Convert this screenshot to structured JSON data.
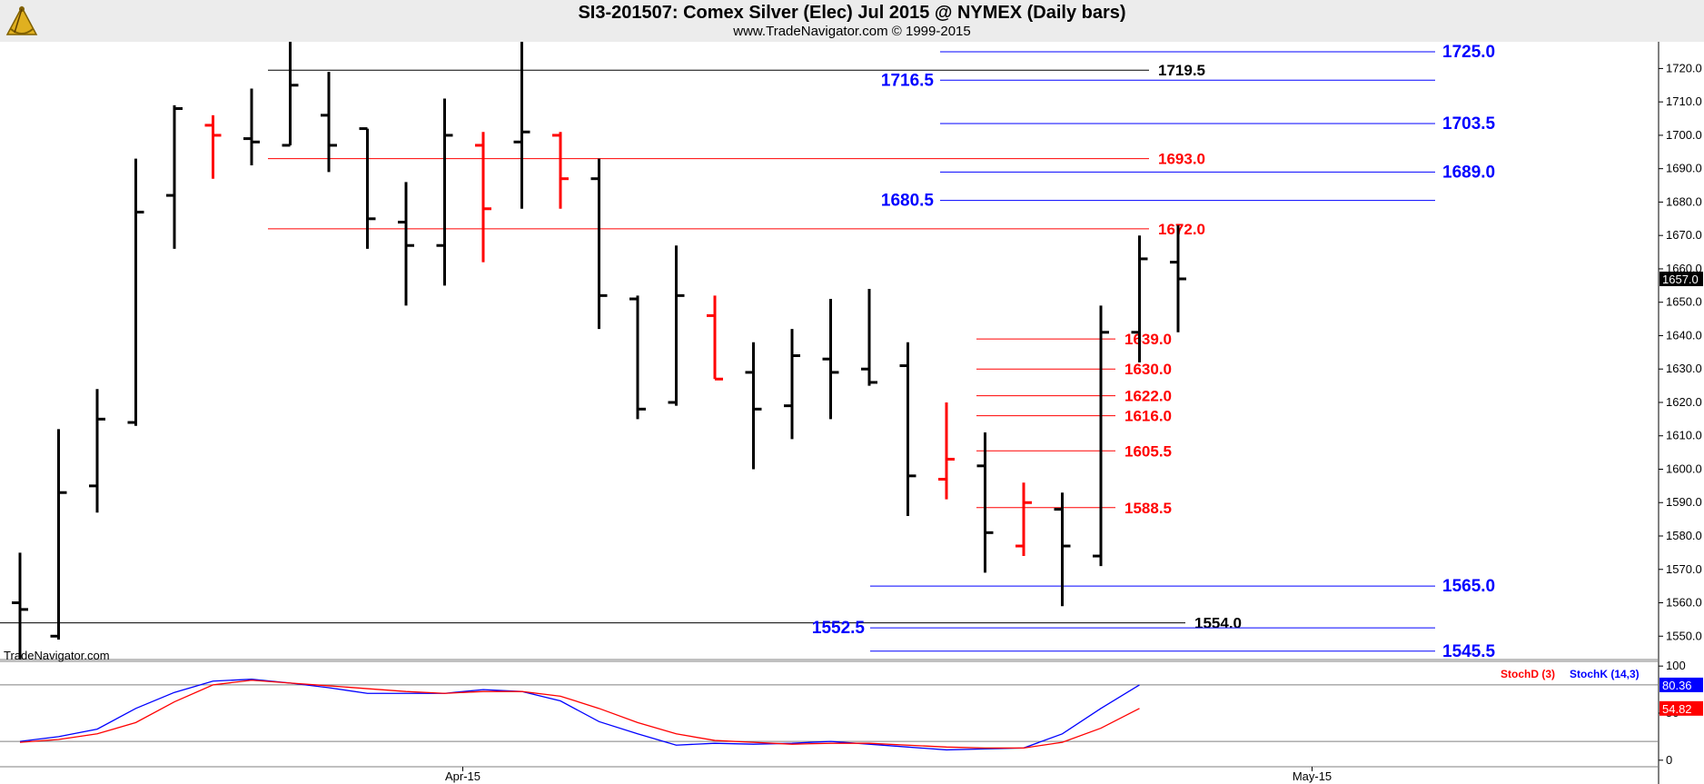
{
  "header": {
    "title": "SI3-201507:  Comex Silver (Elec) Jul 2015 @ NYMEX  (Daily bars)",
    "subtitle": "www.TradeNavigator.com © 1999-2015",
    "logo_icon": "sextant-logo-icon"
  },
  "watermark": "TradeNavigator.com",
  "colors": {
    "up": "#000000",
    "down": "#ff0000",
    "reversal": "#00c800",
    "blue_level": "#0000ff",
    "red_level": "#ff0000",
    "black_level": "#000000",
    "stochK": "#0000ff",
    "stochD": "#ff0000"
  },
  "chart_data": [
    {
      "type": "ohlc",
      "title": "SI3-201507:  Comex Silver (Elec) Jul 2015 @ NYMEX  (Daily bars)",
      "ylim": [
        1543,
        1728
      ],
      "y_ticks": [
        1550.0,
        1560.0,
        1570.0,
        1580.0,
        1590.0,
        1600.0,
        1610.0,
        1620.0,
        1630.0,
        1640.0,
        1650.0,
        1660.0,
        1670.0,
        1680.0,
        1690.0,
        1700.0,
        1710.0,
        1720.0
      ],
      "x_labels": [
        {
          "label": "Apr-15",
          "bar_index": 11
        },
        {
          "label": "May-15",
          "bar_index": 33
        }
      ],
      "last_price": "1657.0",
      "bars": [
        {
          "o": 1560,
          "h": 1575,
          "l": 1543,
          "c": 1558,
          "color": "black"
        },
        {
          "o": 1550,
          "h": 1612,
          "l": 1549,
          "c": 1593,
          "color": "black"
        },
        {
          "o": 1595,
          "h": 1624,
          "l": 1587,
          "c": 1615,
          "color": "black"
        },
        {
          "o": 1614,
          "h": 1693,
          "l": 1613,
          "c": 1677,
          "color": "black"
        },
        {
          "o": 1682,
          "h": 1709,
          "l": 1666,
          "c": 1708,
          "color": "black"
        },
        {
          "o": 1703,
          "h": 1706,
          "l": 1687,
          "c": 1700,
          "color": "red"
        },
        {
          "o": 1699,
          "h": 1714,
          "l": 1691,
          "c": 1698,
          "color": "black"
        },
        {
          "o": 1697,
          "h": 1729,
          "l": 1697,
          "c": 1715,
          "color": "black"
        },
        {
          "o": 1706,
          "h": 1719,
          "l": 1689,
          "c": 1697,
          "color": "black"
        },
        {
          "o": 1702,
          "h": 1702,
          "l": 1666,
          "c": 1675,
          "color": "black"
        },
        {
          "o": 1674,
          "h": 1686,
          "l": 1649,
          "c": 1667,
          "color": "black"
        },
        {
          "o": 1667,
          "h": 1711,
          "l": 1655,
          "c": 1700,
          "color": "black"
        },
        {
          "o": 1697,
          "h": 1701,
          "l": 1662,
          "c": 1678,
          "color": "red"
        },
        {
          "o": 1698,
          "h": 1729,
          "l": 1678,
          "c": 1701,
          "color": "black"
        },
        {
          "o": 1700,
          "h": 1701,
          "l": 1678,
          "c": 1687,
          "color": "red"
        },
        {
          "o": 1687,
          "h": 1693,
          "l": 1642,
          "c": 1652,
          "color": "black"
        },
        {
          "o": 1651,
          "h": 1652,
          "l": 1615,
          "c": 1618,
          "color": "black"
        },
        {
          "o": 1620,
          "h": 1667,
          "l": 1619,
          "c": 1652,
          "color": "black"
        },
        {
          "o": 1646,
          "h": 1652,
          "l": 1627,
          "c": 1627,
          "color": "red"
        },
        {
          "o": 1629,
          "h": 1638,
          "l": 1600,
          "c": 1618,
          "color": "black"
        },
        {
          "o": 1619,
          "h": 1642,
          "l": 1609,
          "c": 1634,
          "color": "black"
        },
        {
          "o": 1633,
          "h": 1651,
          "l": 1615,
          "c": 1629,
          "color": "black"
        },
        {
          "o": 1630,
          "h": 1654,
          "l": 1625,
          "c": 1626,
          "color": "black"
        },
        {
          "o": 1631,
          "h": 1638,
          "l": 1586,
          "c": 1598,
          "color": "black"
        },
        {
          "o": 1597,
          "h": 1620,
          "l": 1591,
          "c": 1603,
          "color": "red"
        },
        {
          "o": 1601,
          "h": 1611,
          "l": 1569,
          "c": 1581,
          "color": "black"
        },
        {
          "o": 1577,
          "h": 1596,
          "l": 1574,
          "c": 1590,
          "color": "red"
        },
        {
          "o": 1588,
          "h": 1593,
          "l": 1559,
          "c": 1577,
          "color": "black"
        },
        {
          "o": 1574,
          "h": 1649,
          "l": 1571,
          "c": 1641,
          "color": "black"
        },
        {
          "o": 1641,
          "h": 1670,
          "l": 1632,
          "c": 1663,
          "color": "black"
        },
        {
          "o": 1662,
          "h": 1673,
          "l": 1641,
          "c": 1657,
          "color": "black"
        }
      ],
      "levels": [
        {
          "value": 1725.0,
          "label": "1725.0",
          "color": "blue",
          "label_side": "right"
        },
        {
          "value": 1719.5,
          "label": "1719.5",
          "color": "black",
          "label_side": "mid"
        },
        {
          "value": 1716.5,
          "label": "1716.5",
          "color": "blue",
          "label_side": "left"
        },
        {
          "value": 1703.5,
          "label": "1703.5",
          "color": "blue",
          "label_side": "right"
        },
        {
          "value": 1693.0,
          "label": "1693.0",
          "color": "red",
          "label_side": "mid"
        },
        {
          "value": 1689.0,
          "label": "1689.0",
          "color": "blue",
          "label_side": "right"
        },
        {
          "value": 1680.5,
          "label": "1680.5",
          "color": "blue",
          "label_side": "left"
        },
        {
          "value": 1672.0,
          "label": "1672.0",
          "color": "red",
          "label_side": "mid"
        },
        {
          "value": 1639.0,
          "label": "1639.0",
          "color": "red",
          "label_side": "short"
        },
        {
          "value": 1630.0,
          "label": "1630.0",
          "color": "red",
          "label_side": "short"
        },
        {
          "value": 1622.0,
          "label": "1622.0",
          "color": "red",
          "label_side": "short"
        },
        {
          "value": 1616.0,
          "label": "1616.0",
          "color": "red",
          "label_side": "short"
        },
        {
          "value": 1605.5,
          "label": "1605.5",
          "color": "red",
          "label_side": "short"
        },
        {
          "value": 1588.5,
          "label": "1588.5",
          "color": "red",
          "label_side": "short"
        },
        {
          "value": 1565.0,
          "label": "1565.0",
          "color": "blue",
          "label_side": "right"
        },
        {
          "value": 1554.0,
          "label": "1554.0",
          "color": "black",
          "label_side": "mid"
        },
        {
          "value": 1552.5,
          "label": "1552.5",
          "color": "blue",
          "label_side": "left"
        },
        {
          "value": 1545.5,
          "label": "1545.5",
          "color": "blue",
          "label_side": "right"
        }
      ]
    },
    {
      "type": "line",
      "legend": [
        "StochD (3)",
        "StochK (14,3)"
      ],
      "ylim": [
        -5,
        105
      ],
      "y_ticks": [
        0,
        50,
        100
      ],
      "reference_lines": [
        20,
        80
      ],
      "series": [
        {
          "name": "StochK (14,3)",
          "color": "blue",
          "last_label": "80.36",
          "values": [
            20,
            25,
            33,
            55,
            72,
            84,
            86,
            82,
            77,
            71,
            71,
            71,
            75,
            73,
            63,
            41,
            28,
            16,
            18,
            17,
            18,
            20,
            17,
            14,
            11,
            12,
            13,
            28,
            55,
            80
          ]
        },
        {
          "name": "StochD (3)",
          "color": "red",
          "last_label": "54.82",
          "values": [
            19,
            22,
            28,
            40,
            62,
            80,
            85,
            82,
            79,
            76,
            73,
            71,
            73,
            73,
            68,
            55,
            40,
            28,
            21,
            19,
            17,
            18,
            18,
            16,
            14,
            13,
            13,
            19,
            34,
            55
          ]
        }
      ]
    }
  ]
}
